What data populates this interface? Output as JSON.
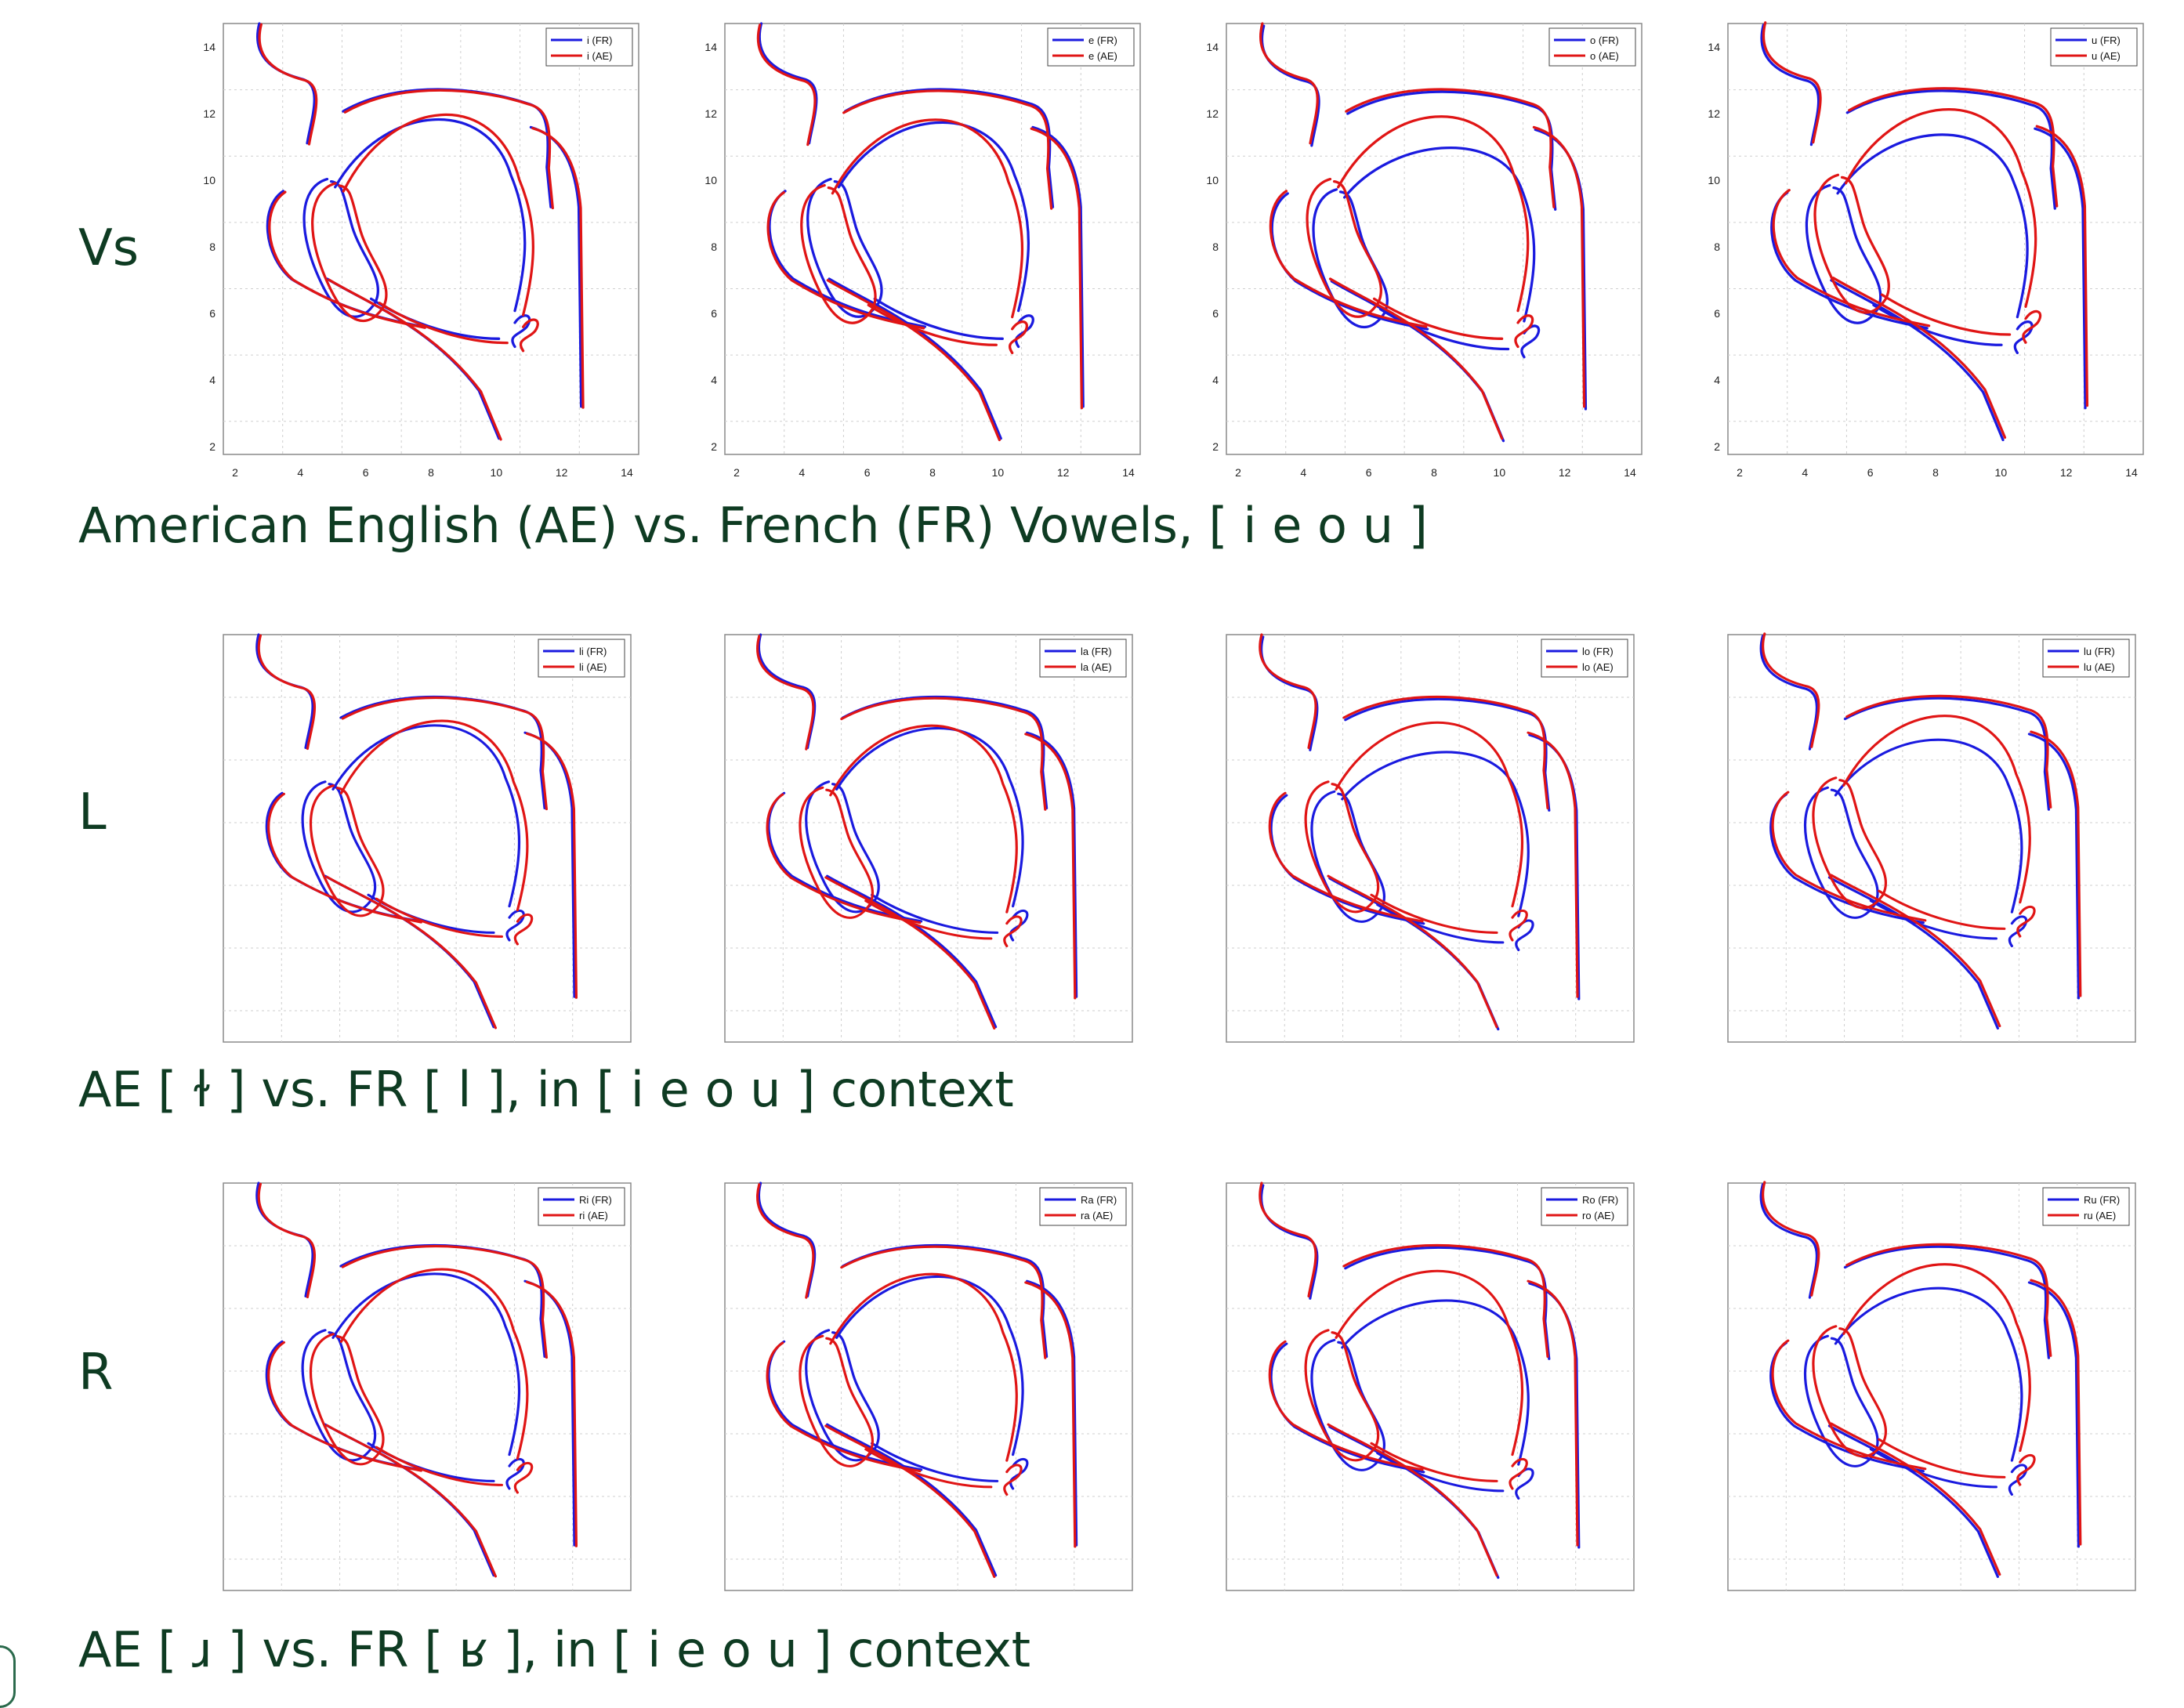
{
  "rows": [
    {
      "label": "Vs",
      "caption": "American English (AE) vs. French (FR) Vowels, [ i e o u ]",
      "ticks": true,
      "panels": [
        {
          "legend": [
            "i (FR)",
            "i (AE)"
          ]
        },
        {
          "legend": [
            "e (FR)",
            "e (AE)"
          ]
        },
        {
          "legend": [
            "o (FR)",
            "o (AE)"
          ]
        },
        {
          "legend": [
            "u (FR)",
            "u (AE)"
          ]
        }
      ]
    },
    {
      "label": "L",
      "caption": "AE [ ɫ ] vs. FR [ l ], in [ i e o u ] context",
      "ticks": false,
      "panels": [
        {
          "legend": [
            "li (FR)",
            "li (AE)"
          ]
        },
        {
          "legend": [
            "la (FR)",
            "la (AE)"
          ]
        },
        {
          "legend": [
            "lo (FR)",
            "lo (AE)"
          ]
        },
        {
          "legend": [
            "lu (FR)",
            "lu (AE)"
          ]
        }
      ]
    },
    {
      "label": "R",
      "caption": "AE [ ɹ ] vs. FR [ ʁ ], in [ i e o u ] context",
      "ticks": false,
      "panels": [
        {
          "legend": [
            "Ri (FR)",
            "ri (AE)"
          ]
        },
        {
          "legend": [
            "Ra (FR)",
            "ra (AE)"
          ]
        },
        {
          "legend": [
            "Ro (FR)",
            "ro (AE)"
          ]
        },
        {
          "legend": [
            "Ru (FR)",
            "ru (AE)"
          ]
        }
      ]
    }
  ],
  "axis": {
    "x_ticks": [
      "2",
      "4",
      "6",
      "8",
      "10",
      "12",
      "14"
    ],
    "y_ticks": [
      "2",
      "4",
      "6",
      "8",
      "10",
      "12",
      "14"
    ]
  },
  "colors": {
    "fr": "#1a1adf",
    "ae": "#e01515",
    "text": "#0e3b22",
    "grid": "#cfcfcf"
  }
}
